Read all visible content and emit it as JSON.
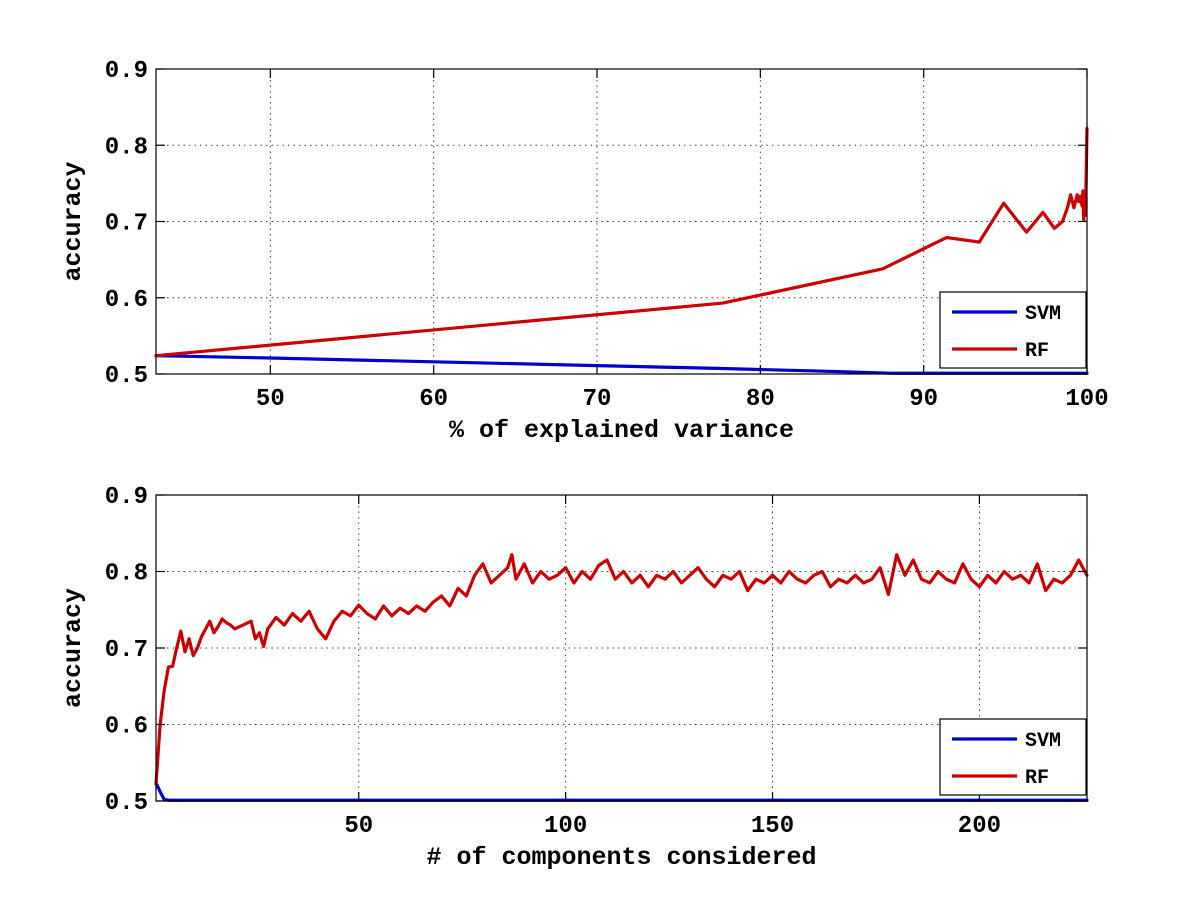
{
  "chart_data": [
    {
      "type": "line",
      "xlabel": "% of explained variance",
      "ylabel": "accuracy",
      "xlim": [
        43,
        100
      ],
      "ylim": [
        0.5,
        0.9
      ],
      "xticks": [
        50,
        60,
        70,
        80,
        90,
        100
      ],
      "yticks": [
        0.5,
        0.6,
        0.7,
        0.8,
        0.9
      ],
      "xtick_labels": [
        "50",
        "60",
        "70",
        "80",
        "90",
        "100"
      ],
      "ytick_labels": [
        "0.5",
        "0.6",
        "0.7",
        "0.8",
        "0.9"
      ],
      "grid": true,
      "legend": "bottom-right",
      "series": [
        {
          "name": "SVM",
          "color": "#0000cc",
          "x": [
            43,
            50,
            60,
            70,
            78,
            85,
            88,
            100
          ],
          "y": [
            0.524,
            0.521,
            0.516,
            0.511,
            0.507,
            0.503,
            0.501,
            0.501
          ]
        },
        {
          "name": "RF",
          "color": "#cc0000",
          "x": [
            43,
            77.7,
            87.5,
            91.4,
            93.4,
            94.9,
            96.3,
            97.3,
            98.0,
            98.5,
            98.8,
            99.0,
            99.2,
            99.4,
            99.5,
            99.6,
            99.7,
            99.75,
            99.8,
            99.85,
            99.9,
            99.95,
            100
          ],
          "y": [
            0.524,
            0.593,
            0.638,
            0.679,
            0.673,
            0.724,
            0.686,
            0.712,
            0.691,
            0.7,
            0.718,
            0.735,
            0.718,
            0.735,
            0.726,
            0.733,
            0.72,
            0.74,
            0.702,
            0.73,
            0.708,
            0.76,
            0.822
          ]
        }
      ]
    },
    {
      "type": "line",
      "xlabel": "# of components considered",
      "ylabel": "accuracy",
      "xlim": [
        1,
        226
      ],
      "ylim": [
        0.5,
        0.9
      ],
      "xticks": [
        50,
        100,
        150,
        200
      ],
      "yticks": [
        0.5,
        0.6,
        0.7,
        0.8,
        0.9
      ],
      "xtick_labels": [
        "50",
        "100",
        "150",
        "200"
      ],
      "ytick_labels": [
        "0.5",
        "0.6",
        "0.7",
        "0.8",
        "0.9"
      ],
      "grid": true,
      "legend": "bottom-right",
      "series": [
        {
          "name": "SVM",
          "color": "#0000cc",
          "x": [
            1,
            2,
            3,
            4,
            226
          ],
          "y": [
            0.524,
            0.512,
            0.502,
            0.501,
            0.501
          ]
        },
        {
          "name": "RF",
          "color": "#cc0000",
          "x": [
            1,
            2,
            3,
            4,
            5,
            6,
            7,
            8,
            9,
            10,
            11,
            12,
            13,
            14,
            15,
            16,
            17,
            18,
            19,
            20,
            22,
            24,
            25,
            26,
            27,
            28,
            30,
            32,
            34,
            36,
            38,
            40,
            42,
            44,
            46,
            48,
            50,
            52,
            54,
            56,
            58,
            60,
            62,
            64,
            66,
            68,
            70,
            72,
            74,
            76,
            78,
            80,
            82,
            84,
            86,
            87,
            88,
            90,
            92,
            94,
            96,
            98,
            100,
            102,
            104,
            106,
            108,
            110,
            112,
            114,
            116,
            118,
            120,
            122,
            124,
            126,
            128,
            130,
            132,
            134,
            136,
            138,
            140,
            142,
            144,
            146,
            148,
            150,
            152,
            154,
            156,
            158,
            160,
            162,
            164,
            166,
            168,
            170,
            172,
            174,
            176,
            178,
            180,
            182,
            184,
            186,
            188,
            190,
            192,
            194,
            196,
            198,
            200,
            202,
            204,
            206,
            208,
            210,
            212,
            214,
            216,
            218,
            220,
            222,
            224,
            226
          ],
          "y": [
            0.522,
            0.6,
            0.645,
            0.675,
            0.676,
            0.7,
            0.722,
            0.695,
            0.712,
            0.69,
            0.7,
            0.715,
            0.725,
            0.735,
            0.72,
            0.728,
            0.738,
            0.733,
            0.73,
            0.725,
            0.73,
            0.735,
            0.712,
            0.72,
            0.702,
            0.725,
            0.74,
            0.73,
            0.745,
            0.735,
            0.748,
            0.725,
            0.712,
            0.735,
            0.748,
            0.742,
            0.756,
            0.745,
            0.738,
            0.755,
            0.742,
            0.752,
            0.745,
            0.755,
            0.748,
            0.76,
            0.768,
            0.755,
            0.778,
            0.768,
            0.795,
            0.81,
            0.785,
            0.795,
            0.805,
            0.822,
            0.79,
            0.81,
            0.785,
            0.8,
            0.79,
            0.795,
            0.805,
            0.785,
            0.8,
            0.79,
            0.808,
            0.815,
            0.79,
            0.8,
            0.785,
            0.795,
            0.78,
            0.795,
            0.79,
            0.8,
            0.785,
            0.795,
            0.805,
            0.79,
            0.78,
            0.795,
            0.79,
            0.8,
            0.775,
            0.79,
            0.785,
            0.795,
            0.785,
            0.8,
            0.79,
            0.785,
            0.795,
            0.8,
            0.78,
            0.79,
            0.785,
            0.795,
            0.785,
            0.79,
            0.805,
            0.77,
            0.822,
            0.795,
            0.815,
            0.79,
            0.785,
            0.8,
            0.79,
            0.785,
            0.81,
            0.79,
            0.78,
            0.795,
            0.785,
            0.8,
            0.79,
            0.795,
            0.785,
            0.81,
            0.775,
            0.79,
            0.785,
            0.795,
            0.815,
            0.795
          ]
        }
      ]
    }
  ]
}
